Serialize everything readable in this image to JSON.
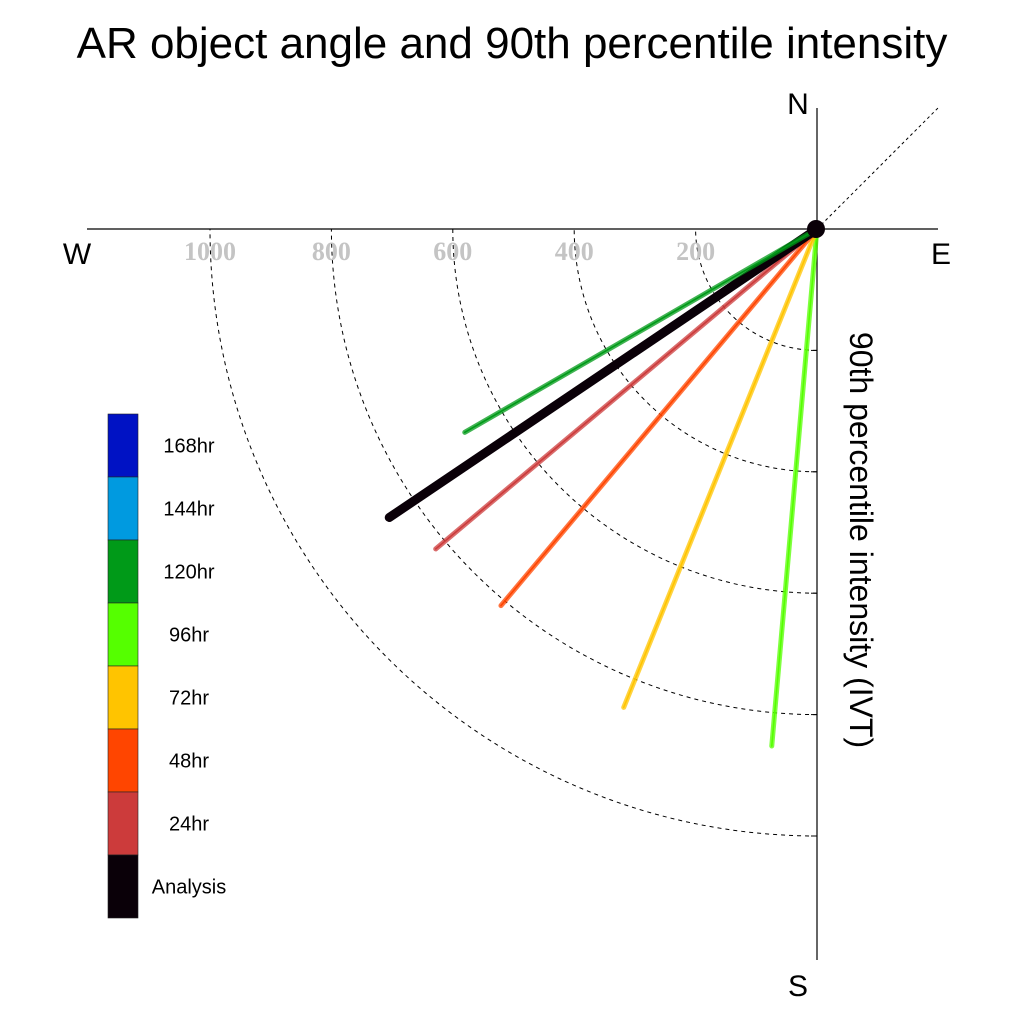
{
  "chart_data": {
    "type": "polar-vector",
    "title": "AR object angle and 90th percentile intensity",
    "radial_label": "90th percentile intensity (IVT)",
    "compass": {
      "north": "N",
      "south": "S",
      "east": "E",
      "west": "W"
    },
    "radial_ticks": [
      200,
      400,
      600,
      800,
      1000
    ],
    "radial_tick_labels": [
      "200",
      "400",
      "600",
      "800",
      "1000"
    ],
    "radial_max": 1000,
    "diagonal_reference": "NE-SW dotted",
    "series": [
      {
        "name": "96hr",
        "color": "#55ff00",
        "angle_deg": 185,
        "intensity": 855
      },
      {
        "name": "72hr",
        "color": "#ffc400",
        "angle_deg": 202,
        "intensity": 850
      },
      {
        "name": "48hr",
        "color": "#ff4500",
        "angle_deg": 220,
        "intensity": 810
      },
      {
        "name": "24hr",
        "color": "#cc3b3b",
        "angle_deg": 230,
        "intensity": 820
      },
      {
        "name": "Analysis",
        "color": "#0a0008",
        "angle_deg": 236,
        "intensity": 850
      },
      {
        "name": "120hr",
        "color": "#009a18",
        "angle_deg": 240,
        "intensity": 670
      }
    ],
    "legend": {
      "entries": [
        {
          "label": "168hr",
          "color": "#0012c4"
        },
        {
          "label": "144hr",
          "color": "#009ae0"
        },
        {
          "label": "120hr",
          "color": "#009a18"
        },
        {
          "label": "96hr",
          "color": "#55ff00"
        },
        {
          "label": "72hr",
          "color": "#ffc400"
        },
        {
          "label": "48hr",
          "color": "#ff4500"
        },
        {
          "label": "24hr",
          "color": "#cc3b3b"
        },
        {
          "label": "Analysis",
          "color": "#0a0008"
        }
      ]
    }
  }
}
